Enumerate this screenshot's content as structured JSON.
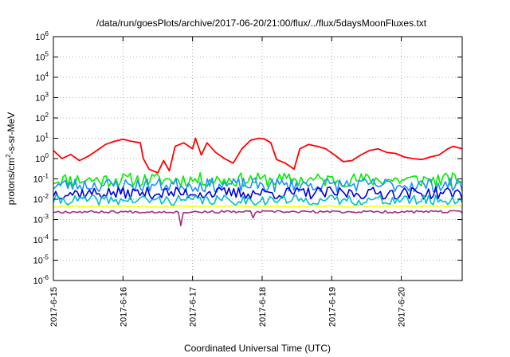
{
  "chart_data": {
    "type": "line",
    "title": "/data/run/goesPlots/archive/2017-06-20/21:00/flux/../flux/5daysMoonFluxes.txt",
    "xlabel": "Coordinated Universal Time (UTC)",
    "ylabel": {
      "pre": "protons/cm",
      "sup": "2",
      "post": "-s-sr-MeV"
    },
    "y_scale": "log",
    "ylim": [
      1e-06,
      1000000.0
    ],
    "xlim": [
      "2017-06-15T00:00",
      "2017-06-20T21:00"
    ],
    "grid": true,
    "x_ticks": [
      "2017-6-15",
      "2017-6-16",
      "2017-6-17",
      "2017-6-18",
      "2017-6-19",
      "2017-6-20"
    ],
    "y_ticks": [
      {
        "base": "10",
        "exp": "-6"
      },
      {
        "base": "10",
        "exp": "-5"
      },
      {
        "base": "10",
        "exp": "-4"
      },
      {
        "base": "10",
        "exp": "-3"
      },
      {
        "base": "10",
        "exp": "-2"
      },
      {
        "base": "10",
        "exp": "-1"
      },
      {
        "base": "10",
        "exp": "0"
      },
      {
        "base": "10",
        "exp": "1"
      },
      {
        "base": "10",
        "exp": "2"
      },
      {
        "base": "10",
        "exp": "3"
      },
      {
        "base": "10",
        "exp": "4"
      },
      {
        "base": "10",
        "exp": "5"
      },
      {
        "base": "10",
        "exp": "6"
      }
    ],
    "series": [
      {
        "color": "#ff0000",
        "points": [
          [
            "2017-06-15T00:00",
            2.5
          ],
          [
            "2017-06-15T03:00",
            1.0
          ],
          [
            "2017-06-15T06:00",
            1.6
          ],
          [
            "2017-06-15T09:00",
            0.8
          ],
          [
            "2017-06-15T12:00",
            1.3
          ],
          [
            "2017-06-15T15:00",
            2.5
          ],
          [
            "2017-06-15T18:00",
            5.0
          ],
          [
            "2017-06-15T21:00",
            7.0
          ],
          [
            "2017-06-16T00:00",
            9.0
          ],
          [
            "2017-06-16T03:00",
            7.0
          ],
          [
            "2017-06-16T06:00",
            6.0
          ],
          [
            "2017-06-16T07:00",
            1.0
          ],
          [
            "2017-06-16T09:00",
            0.3
          ],
          [
            "2017-06-16T12:00",
            0.2
          ],
          [
            "2017-06-16T14:00",
            0.8
          ],
          [
            "2017-06-16T16:00",
            0.25
          ],
          [
            "2017-06-16T18:00",
            4.0
          ],
          [
            "2017-06-16T21:00",
            6.0
          ],
          [
            "2017-06-17T00:00",
            3.0
          ],
          [
            "2017-06-17T01:00",
            10.0
          ],
          [
            "2017-06-17T03:00",
            1.5
          ],
          [
            "2017-06-17T05:00",
            6.0
          ],
          [
            "2017-06-17T08:00",
            2.0
          ],
          [
            "2017-06-17T11:00",
            1.0
          ],
          [
            "2017-06-17T14:00",
            0.6
          ],
          [
            "2017-06-17T17:00",
            3.0
          ],
          [
            "2017-06-17T20:00",
            8.0
          ],
          [
            "2017-06-17T23:00",
            10.0
          ],
          [
            "2017-06-18T01:00",
            9.0
          ],
          [
            "2017-06-18T03:00",
            6.0
          ],
          [
            "2017-06-18T05:00",
            0.9
          ],
          [
            "2017-06-18T08:00",
            0.6
          ],
          [
            "2017-06-18T11:00",
            0.3
          ],
          [
            "2017-06-18T13:00",
            3.0
          ],
          [
            "2017-06-18T16:00",
            5.0
          ],
          [
            "2017-06-18T19:00",
            4.0
          ],
          [
            "2017-06-18T22:00",
            3.0
          ],
          [
            "2017-06-19T01:00",
            1.5
          ],
          [
            "2017-06-19T04:00",
            0.7
          ],
          [
            "2017-06-19T07:00",
            0.8
          ],
          [
            "2017-06-19T10:00",
            1.5
          ],
          [
            "2017-06-19T13:00",
            2.5
          ],
          [
            "2017-06-19T16:00",
            3.0
          ],
          [
            "2017-06-19T19:00",
            2.0
          ],
          [
            "2017-06-19T22:00",
            1.8
          ],
          [
            "2017-06-20T01:00",
            1.2
          ],
          [
            "2017-06-20T04:00",
            1.0
          ],
          [
            "2017-06-20T07:00",
            0.9
          ],
          [
            "2017-06-20T10:00",
            1.2
          ],
          [
            "2017-06-20T13:00",
            1.5
          ],
          [
            "2017-06-20T16:00",
            3.0
          ],
          [
            "2017-06-20T18:00",
            4.0
          ],
          [
            "2017-06-20T21:00",
            3.0
          ]
        ]
      },
      {
        "color": "#00ee00",
        "level": 0.09,
        "jitter": 0.35,
        "seed": 11
      },
      {
        "color": "#2090ff",
        "level": 0.05,
        "jitter": 0.35,
        "seed": 23
      },
      {
        "color": "#0000dd",
        "level": 0.02,
        "jitter": 0.3,
        "seed": 37
      },
      {
        "color": "#00c0c0",
        "level": 0.009,
        "jitter": 0.25,
        "seed": 41
      },
      {
        "color": "#ffff00",
        "level": 0.0045,
        "jitter": 0.05,
        "seed": 53
      },
      {
        "color": "#a03080",
        "level": 0.0024,
        "jitter": 0.06,
        "seed": 67,
        "dips": [
          [
            "2017-06-16T20:00",
            0.0005
          ],
          [
            "2017-06-17T21:00",
            0.0012
          ]
        ]
      }
    ]
  }
}
